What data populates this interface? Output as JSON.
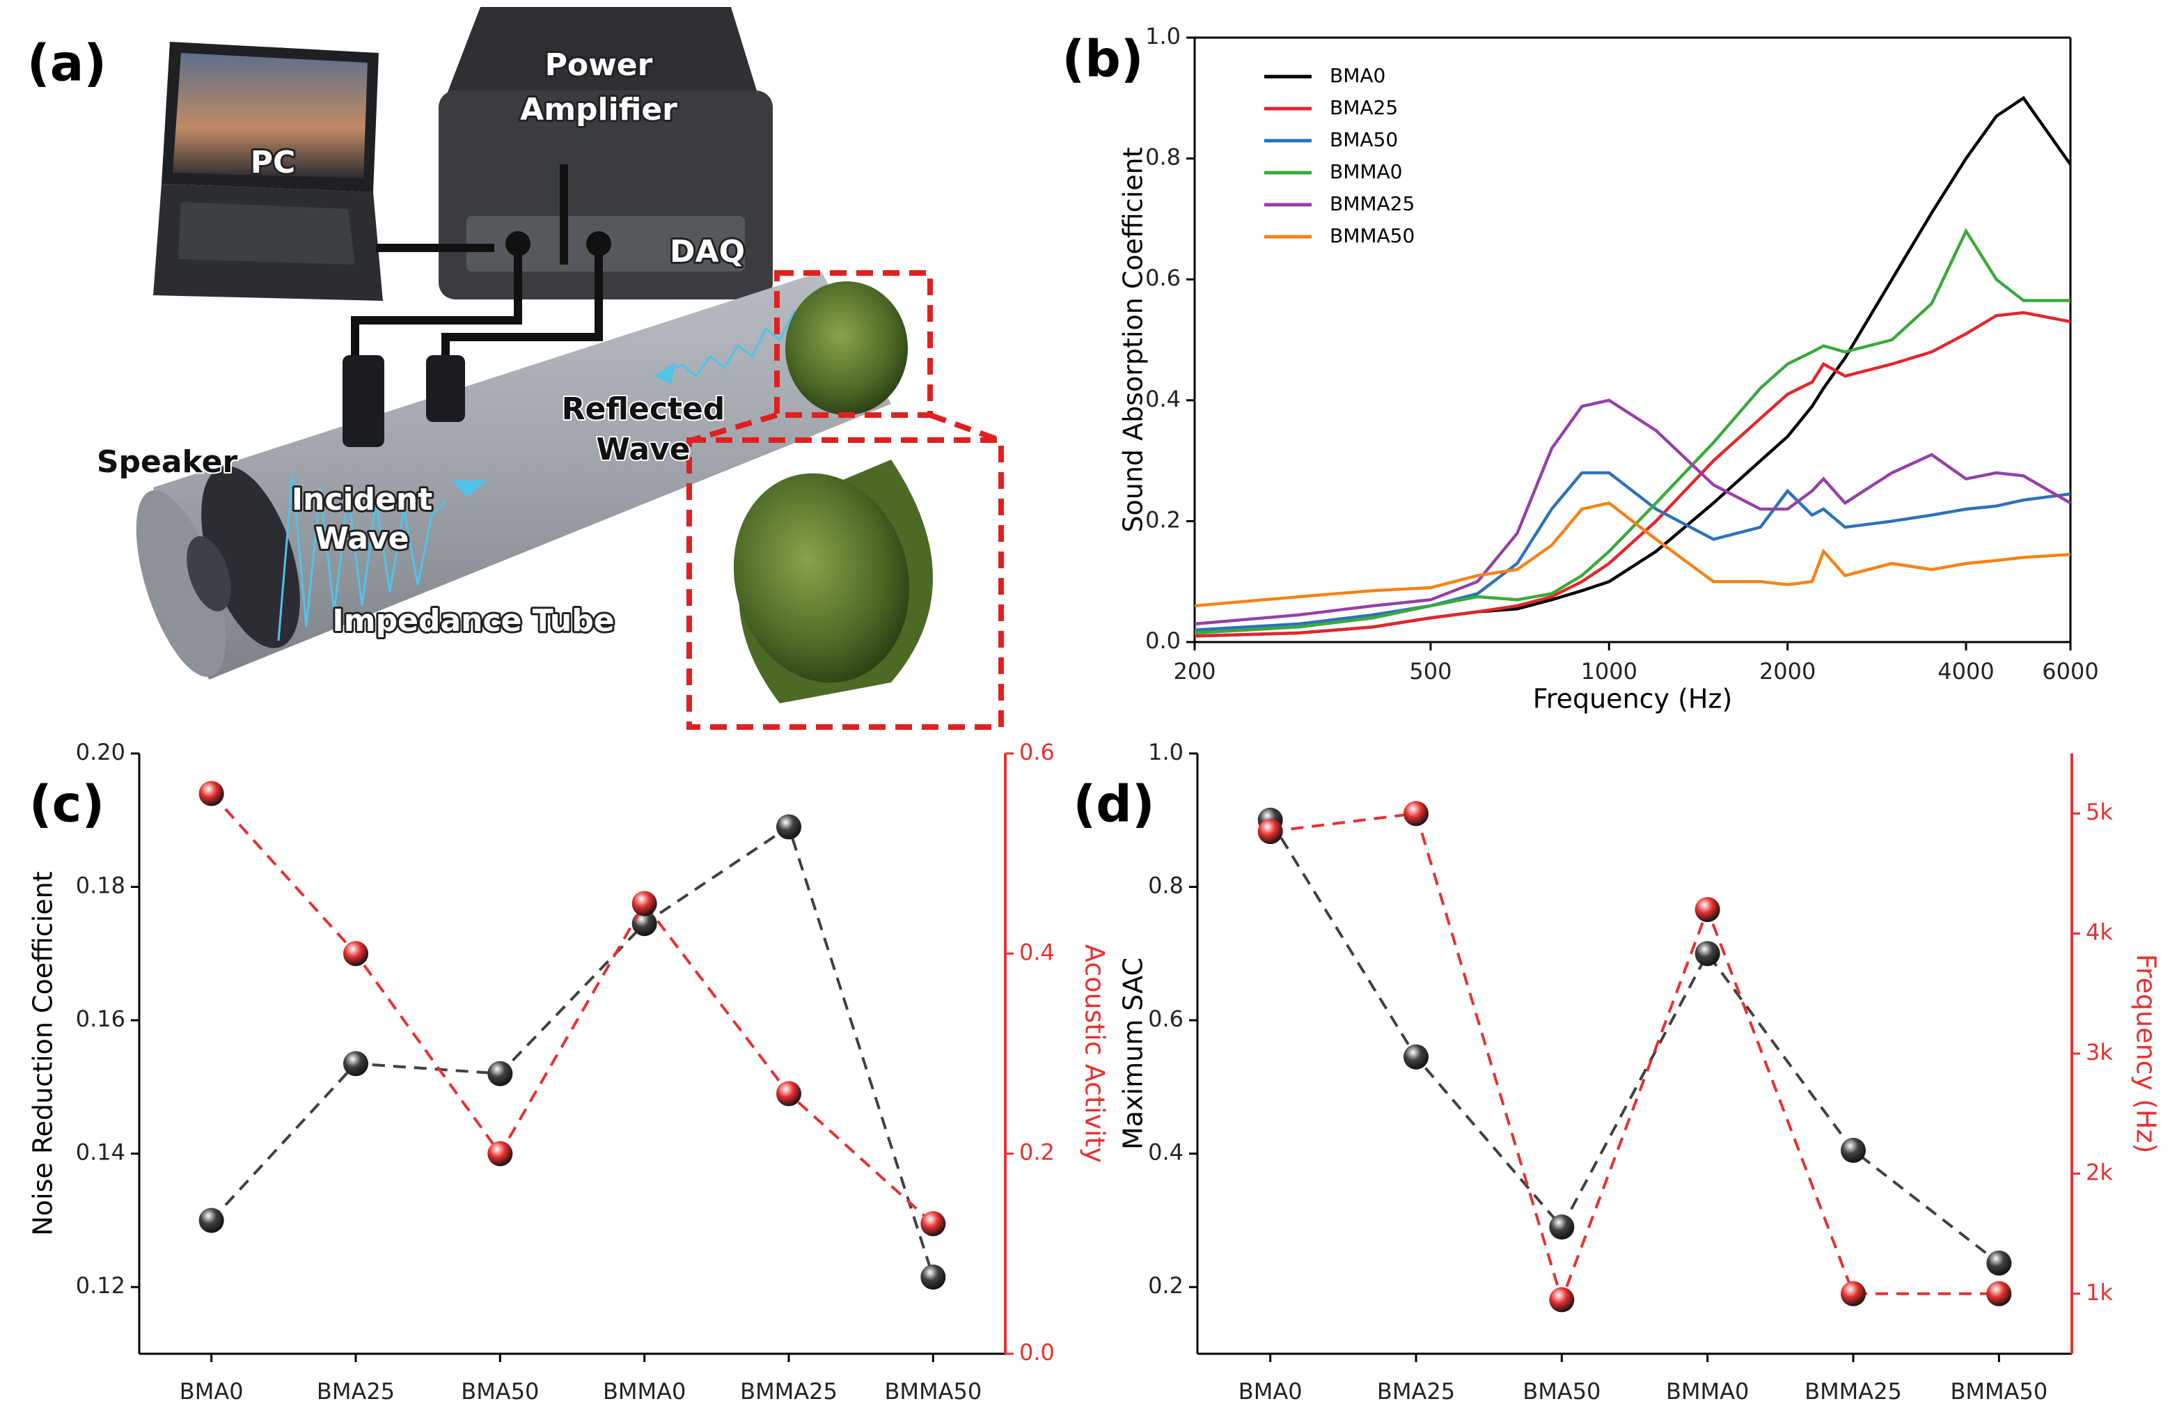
{
  "diagram": {
    "panel": "(a)",
    "pc": "PC",
    "amplifier": [
      "Power",
      "Amplifier"
    ],
    "daq": "DAQ",
    "reflected": [
      "Reflected",
      "Wave"
    ],
    "speaker": "Speaker",
    "incident": [
      "Incident",
      "Wave"
    ],
    "tube": "Impedance Tube"
  },
  "chart_data": [
    {
      "type": "line",
      "panel": "(b)",
      "xlabel": "Frequency (Hz)",
      "ylabel": "Sound Absorption Coefficient",
      "xscale": "log",
      "legend": "upper left",
      "x": [
        200,
        300,
        400,
        500,
        600,
        700,
        800,
        900,
        1000,
        1200,
        1500,
        1800,
        2000,
        2200,
        2300,
        2500,
        3000,
        3500,
        4000,
        4500,
        5000,
        6000
      ],
      "xlim": [
        200,
        6000
      ],
      "xticks": [
        200,
        500,
        1000,
        2000,
        4000,
        6000
      ],
      "ylim": [
        0,
        1
      ],
      "yticks": [
        {
          "value": 0,
          "label": "0.0"
        },
        0.2,
        0.4,
        0.6,
        0.8,
        {
          "value": 1,
          "label": "1.0"
        }
      ],
      "series": [
        {
          "name": "BMA0",
          "color": "#000000",
          "values": [
            0.01,
            0.015,
            0.025,
            0.04,
            0.05,
            0.055,
            0.07,
            0.085,
            0.1,
            0.15,
            0.23,
            0.3,
            0.34,
            0.39,
            0.42,
            0.47,
            0.6,
            0.71,
            0.8,
            0.87,
            0.9,
            0.79
          ]
        },
        {
          "name": "BMA25",
          "color": "#e3262a",
          "values": [
            0.01,
            0.015,
            0.025,
            0.04,
            0.05,
            0.06,
            0.075,
            0.1,
            0.13,
            0.2,
            0.3,
            0.37,
            0.41,
            0.43,
            0.46,
            0.44,
            0.46,
            0.48,
            0.51,
            0.54,
            0.545,
            0.53
          ]
        },
        {
          "name": "BMA50",
          "color": "#2c72b8",
          "values": [
            0.02,
            0.03,
            0.045,
            0.06,
            0.08,
            0.13,
            0.22,
            0.28,
            0.28,
            0.22,
            0.17,
            0.19,
            0.25,
            0.21,
            0.22,
            0.19,
            0.2,
            0.21,
            0.22,
            0.225,
            0.235,
            0.245
          ]
        },
        {
          "name": "BMMA0",
          "color": "#3aa93a",
          "values": [
            0.015,
            0.025,
            0.04,
            0.06,
            0.075,
            0.07,
            0.08,
            0.11,
            0.15,
            0.23,
            0.33,
            0.42,
            0.46,
            0.48,
            0.49,
            0.48,
            0.5,
            0.56,
            0.68,
            0.6,
            0.565,
            0.565
          ]
        },
        {
          "name": "BMMA25",
          "color": "#9440a8",
          "values": [
            0.03,
            0.045,
            0.06,
            0.07,
            0.1,
            0.18,
            0.32,
            0.39,
            0.4,
            0.35,
            0.26,
            0.22,
            0.22,
            0.25,
            0.27,
            0.23,
            0.28,
            0.31,
            0.27,
            0.28,
            0.275,
            0.23
          ]
        },
        {
          "name": "BMMA50",
          "color": "#f68216",
          "values": [
            0.06,
            0.075,
            0.085,
            0.09,
            0.11,
            0.12,
            0.16,
            0.22,
            0.23,
            0.17,
            0.1,
            0.1,
            0.095,
            0.1,
            0.15,
            0.11,
            0.13,
            0.12,
            0.13,
            0.135,
            0.14,
            0.145
          ]
        }
      ]
    },
    {
      "type": "line",
      "panel": "(c)",
      "ylabel": "Noise Reduction Coefficient",
      "y2label": "Acoustic Activity",
      "line_style": "dashed",
      "markers": "sphere",
      "categories": [
        "BMA0",
        "BMA25",
        "BMA50",
        "BMMA0",
        "BMMA25",
        "BMMA50"
      ],
      "ylim": [
        0.11,
        0.2
      ],
      "yticks": [
        0.12,
        0.14,
        0.16,
        0.18,
        {
          "value": 0.2,
          "label": "0.20"
        }
      ],
      "y2lim": [
        0,
        0.6
      ],
      "y2ticks": [
        {
          "value": 0,
          "label": "0.0"
        },
        0.2,
        0.4,
        0.6
      ],
      "series": [
        {
          "name": "Noise Reduction Coefficient",
          "color": "#404040",
          "values": [
            0.13,
            0.1535,
            0.152,
            0.1745,
            0.189,
            0.1215
          ]
        },
        {
          "name": "Acoustic Activity",
          "color": "#e8302f",
          "axis": "y2",
          "values": [
            0.56,
            0.4,
            0.2,
            0.45,
            0.26,
            0.13
          ]
        }
      ]
    },
    {
      "type": "line",
      "panel": "(d)",
      "ylabel": "Maximum SAC",
      "y2label": "Frequency (Hz)",
      "line_style": "dashed",
      "markers": "sphere",
      "categories": [
        "BMA0",
        "BMA25",
        "BMA50",
        "BMMA0",
        "BMMA25",
        "BMMA50"
      ],
      "ylim": [
        0.1,
        1
      ],
      "yticks": [
        0.2,
        0.4,
        0.6,
        0.8,
        {
          "value": 1,
          "label": "1.0"
        }
      ],
      "y2lim": [
        500,
        5500
      ],
      "y2ticks": [
        {
          "value": 1000,
          "label": "1k"
        },
        {
          "value": 2000,
          "label": "2k"
        },
        {
          "value": 3000,
          "label": "3k"
        },
        {
          "value": 4000,
          "label": "4k"
        },
        {
          "value": 5000,
          "label": "5k"
        }
      ],
      "series": [
        {
          "name": "Maximum SAC",
          "color": "#404040",
          "values": [
            0.9,
            0.545,
            0.29,
            0.7,
            0.405,
            0.236
          ]
        },
        {
          "name": "Frequency (Hz)",
          "color": "#e8302f",
          "axis": "y2",
          "values": [
            4850,
            5000,
            950,
            4200,
            1000,
            1000
          ]
        }
      ]
    }
  ]
}
